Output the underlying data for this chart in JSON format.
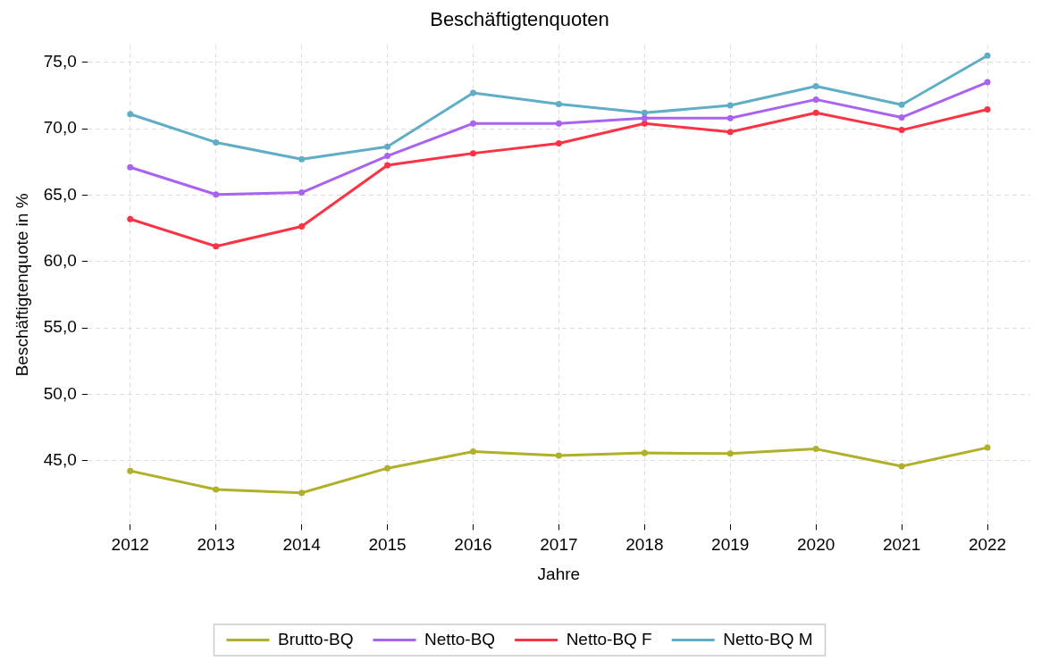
{
  "chart_data": {
    "type": "line",
    "title": "Beschäftigtenquoten",
    "xlabel": "Jahre",
    "ylabel": "Beschäftigtenquote in %",
    "categories": [
      "2012",
      "2013",
      "2014",
      "2015",
      "2016",
      "2017",
      "2018",
      "2019",
      "2020",
      "2021",
      "2022"
    ],
    "series": [
      {
        "name": "Brutto-BQ",
        "color": "#b0b02a",
        "values": [
          44.25,
          42.85,
          42.6,
          44.45,
          45.7,
          45.4,
          45.6,
          45.55,
          45.9,
          44.6,
          46.0
        ]
      },
      {
        "name": "Netto-BQ",
        "color": "#a963f0",
        "values": [
          67.1,
          65.05,
          65.2,
          67.95,
          70.4,
          70.4,
          70.8,
          70.8,
          72.2,
          70.85,
          73.5
        ]
      },
      {
        "name": "Netto-BQ F",
        "color": "#fc3344",
        "values": [
          63.2,
          61.15,
          62.65,
          67.25,
          68.15,
          68.9,
          70.4,
          69.75,
          71.2,
          69.9,
          71.45
        ]
      },
      {
        "name": "Netto-BQ M",
        "color": "#60adc6",
        "values": [
          71.1,
          68.97,
          67.7,
          68.65,
          72.7,
          71.85,
          71.2,
          71.75,
          73.2,
          71.8,
          75.5
        ]
      }
    ],
    "ylim": [
      40.2,
      76.3
    ],
    "yticks": [
      {
        "value": 45,
        "label": "45,0"
      },
      {
        "value": 50,
        "label": "50,0"
      },
      {
        "value": 55,
        "label": "55,0"
      },
      {
        "value": 60,
        "label": "60,0"
      },
      {
        "value": 65,
        "label": "65,0"
      },
      {
        "value": 70,
        "label": "70,0"
      },
      {
        "value": 75,
        "label": "75,0"
      }
    ],
    "grid": true,
    "legend": "bottom",
    "marker": "circle",
    "line_style": "solid"
  }
}
